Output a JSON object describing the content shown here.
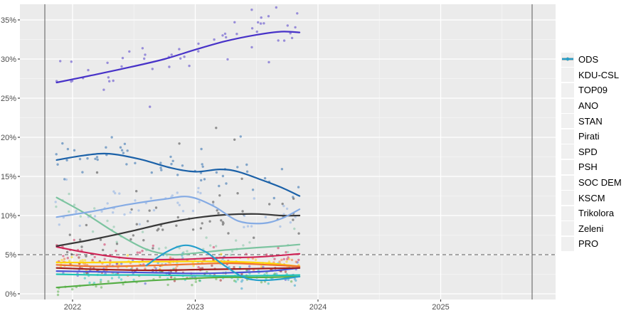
{
  "figure": {
    "title": "",
    "kind": "opinion polling chart (scatter with smoothed trend lines)"
  },
  "style": {
    "panel_bg": "#EBEBEB",
    "grid_color": "#FFFFFF",
    "axis_text_color": "#4D4D4D",
    "tick_color": "#333333",
    "ref_line_color": "#5A5A5A",
    "legend_text_color": "#000000",
    "legend_key_bg": "#F0F0F0"
  },
  "chart_data": {
    "type": "scatter",
    "subtype": "poll scatter points with smoothed (loess) trend lines per party",
    "title": "",
    "xlabel": "",
    "ylabel": "",
    "x_tick_labels": [
      "2022",
      "2023",
      "2024",
      "2025"
    ],
    "x_tick_years": [
      2022,
      2023,
      2024,
      2025
    ],
    "x_minor_years": [
      2022.5,
      2023.5,
      2024.5,
      2025.5
    ],
    "y_tick_labels": [
      "0%",
      "5%",
      "10%",
      "15%",
      "20%",
      "25%",
      "30%",
      "35%"
    ],
    "y_tick_pcts": [
      0,
      5,
      10,
      15,
      20,
      25,
      30,
      35
    ],
    "y_minor_pcts": [
      2.5,
      7.5,
      12.5,
      17.5,
      22.5,
      27.5,
      32.5
    ],
    "xlim": [
      2021.565,
      2025.937
    ],
    "ylim": [
      -0.73,
      37.0
    ],
    "grid": "white major+minor gridlines on gray panel",
    "legend_position": "right",
    "threshold_line": {
      "pct": 5,
      "style": "dashed"
    },
    "vertical_marker_years": [
      2021.774,
      2025.745
    ],
    "data_x_range": [
      2021.86,
      2023.85
    ],
    "scatter_seed": 42,
    "series": [
      {
        "name": "ODS",
        "color": "#1B61A8",
        "points_n": 52,
        "points_sd": 1.15,
        "trend": [
          [
            2021.87,
            17.1
          ],
          [
            2022.1,
            17.7
          ],
          [
            2022.3,
            17.9
          ],
          [
            2022.55,
            17.2
          ],
          [
            2022.8,
            16.1
          ],
          [
            2023.0,
            15.6
          ],
          [
            2023.2,
            15.9
          ],
          [
            2023.35,
            15.6
          ],
          [
            2023.55,
            14.5
          ],
          [
            2023.7,
            13.6
          ],
          [
            2023.85,
            12.5
          ]
        ],
        "outliers": [
          [
            2022.32,
            20.0
          ],
          [
            2023.05,
            18.5
          ],
          [
            2023.37,
            20.1
          ]
        ]
      },
      {
        "name": "KDU-CSL",
        "color": "#FFD400",
        "points_n": 46,
        "points_sd": 0.5,
        "trend": [
          [
            2021.87,
            4.0
          ],
          [
            2022.2,
            4.0
          ],
          [
            2022.6,
            4.1
          ],
          [
            2023.0,
            4.15
          ],
          [
            2023.3,
            4.1
          ],
          [
            2023.6,
            3.9
          ],
          [
            2023.85,
            3.5
          ]
        ]
      },
      {
        "name": "TOP09",
        "color": "#CE2456",
        "points_n": 48,
        "points_sd": 0.8,
        "trend": [
          [
            2021.87,
            6.0
          ],
          [
            2022.1,
            5.3
          ],
          [
            2022.35,
            4.7
          ],
          [
            2022.6,
            4.4
          ],
          [
            2022.9,
            4.4
          ],
          [
            2023.2,
            4.6
          ],
          [
            2023.5,
            4.7
          ],
          [
            2023.85,
            5.1
          ]
        ]
      },
      {
        "name": "ANO",
        "color": "#4732C8",
        "points_n": 52,
        "points_sd": 1.5,
        "trend": [
          [
            2021.87,
            27.0
          ],
          [
            2022.15,
            27.9
          ],
          [
            2022.45,
            28.9
          ],
          [
            2022.75,
            30.0
          ],
          [
            2023.0,
            31.2
          ],
          [
            2023.25,
            32.3
          ],
          [
            2023.5,
            33.1
          ],
          [
            2023.7,
            33.5
          ],
          [
            2023.85,
            33.4
          ]
        ],
        "outliers": [
          [
            2023.46,
            36.3
          ],
          [
            2022.63,
            23.9
          ],
          [
            2023.6,
            29.6
          ]
        ]
      },
      {
        "name": "STAN",
        "color": "#7CC4A0",
        "points_n": 48,
        "points_sd": 1.1,
        "trend": [
          [
            2021.87,
            12.3
          ],
          [
            2022.1,
            10.3
          ],
          [
            2022.35,
            7.8
          ],
          [
            2022.6,
            5.7
          ],
          [
            2022.8,
            5.0
          ],
          [
            2023.0,
            5.2
          ],
          [
            2023.25,
            5.6
          ],
          [
            2023.5,
            5.9
          ],
          [
            2023.7,
            6.1
          ],
          [
            2023.85,
            6.3
          ]
        ]
      },
      {
        "name": "Pirati",
        "color": "#383838",
        "points_n": 52,
        "points_sd": 1.5,
        "trend": [
          [
            2021.87,
            6.1
          ],
          [
            2022.15,
            6.9
          ],
          [
            2022.45,
            7.9
          ],
          [
            2022.75,
            9.0
          ],
          [
            2023.0,
            9.7
          ],
          [
            2023.25,
            10.1
          ],
          [
            2023.5,
            10.2
          ],
          [
            2023.7,
            10.0
          ],
          [
            2023.85,
            10.0
          ]
        ],
        "outliers": [
          [
            2022.2,
            15.5
          ],
          [
            2022.87,
            19.2
          ],
          [
            2023.17,
            21.2
          ],
          [
            2023.32,
            19.7
          ],
          [
            2023.38,
            14.7
          ]
        ]
      },
      {
        "name": "SPD",
        "color": "#85ABE4",
        "points_n": 50,
        "points_sd": 1.15,
        "trend": [
          [
            2021.87,
            9.8
          ],
          [
            2022.15,
            10.5
          ],
          [
            2022.45,
            11.4
          ],
          [
            2022.75,
            12.1
          ],
          [
            2022.95,
            12.4
          ],
          [
            2023.15,
            11.2
          ],
          [
            2023.35,
            9.3
          ],
          [
            2023.55,
            9.0
          ],
          [
            2023.7,
            9.6
          ],
          [
            2023.85,
            10.8
          ]
        ],
        "outliers": [
          [
            2021.95,
            14.6
          ]
        ]
      },
      {
        "name": "PSH",
        "color": "#4753D6",
        "points_n": 44,
        "points_sd": 0.6,
        "trend": [
          [
            2021.87,
            2.9
          ],
          [
            2022.25,
            2.8
          ],
          [
            2022.65,
            2.7
          ],
          [
            2023.0,
            2.6
          ],
          [
            2023.3,
            2.7
          ],
          [
            2023.6,
            2.9
          ],
          [
            2023.85,
            3.3
          ]
        ]
      },
      {
        "name": "SOC DEM",
        "color": "#F1722E",
        "points_n": 46,
        "points_sd": 0.6,
        "trend": [
          [
            2021.87,
            3.7
          ],
          [
            2022.2,
            3.5
          ],
          [
            2022.6,
            3.6
          ],
          [
            2023.0,
            3.8
          ],
          [
            2023.3,
            3.9
          ],
          [
            2023.6,
            3.7
          ],
          [
            2023.85,
            3.5
          ]
        ]
      },
      {
        "name": "KSCM",
        "color": "#9E1B1B",
        "points_n": 44,
        "points_sd": 0.6,
        "trend": [
          [
            2021.87,
            3.3
          ],
          [
            2022.25,
            3.1
          ],
          [
            2022.65,
            3.0
          ],
          [
            2023.05,
            3.1
          ],
          [
            2023.45,
            3.2
          ],
          [
            2023.85,
            3.3
          ]
        ]
      },
      {
        "name": "Trikolora",
        "color": "#20C2B5",
        "points_n": 42,
        "points_sd": 0.55,
        "trend": [
          [
            2021.87,
            2.5
          ],
          [
            2022.25,
            2.4
          ],
          [
            2022.65,
            2.4
          ],
          [
            2023.05,
            2.3
          ],
          [
            2023.45,
            2.3
          ],
          [
            2023.85,
            2.4
          ]
        ]
      },
      {
        "name": "Zeleni",
        "color": "#56AE46",
        "points_n": 40,
        "points_sd": 0.5,
        "trend": [
          [
            2021.87,
            0.8
          ],
          [
            2022.2,
            1.2
          ],
          [
            2022.55,
            1.6
          ],
          [
            2022.9,
            1.9
          ],
          [
            2023.2,
            2.1
          ],
          [
            2023.55,
            2.1
          ],
          [
            2023.85,
            2.2
          ]
        ]
      },
      {
        "name": "PRO",
        "color": "#259FCC",
        "points_n": 24,
        "points_sd": 0.9,
        "x_range": [
          2022.6,
          2023.85
        ],
        "trend": [
          [
            2022.6,
            3.6
          ],
          [
            2022.76,
            5.3
          ],
          [
            2022.92,
            6.2
          ],
          [
            2023.08,
            5.4
          ],
          [
            2023.22,
            3.8
          ],
          [
            2023.38,
            2.2
          ],
          [
            2023.5,
            1.75
          ],
          [
            2023.65,
            1.8
          ],
          [
            2023.85,
            2.2
          ]
        ]
      }
    ]
  }
}
